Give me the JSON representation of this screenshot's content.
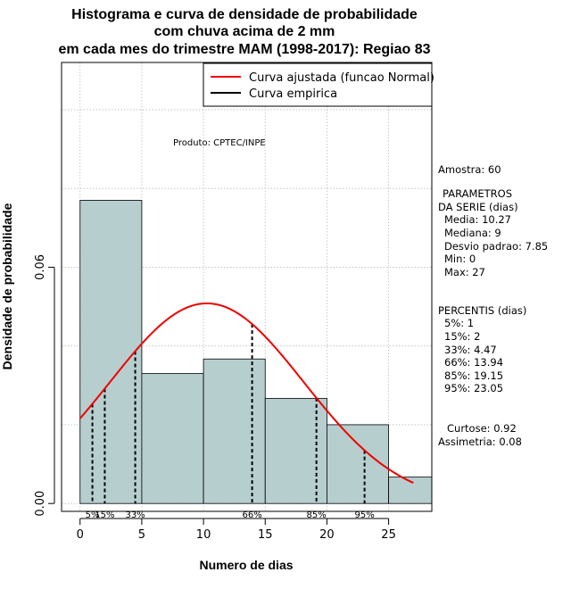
{
  "chart_data": {
    "type": "histogram",
    "title_lines": [
      "Histograma e curva de densidade de probabilidade",
      "com chuva acima de 2 mm",
      "em cada mes do trimestre MAM (1998-2017): Regiao 83"
    ],
    "xlabel": "Numero de dias",
    "ylabel": "Densidade de probabilidade",
    "xlim": [
      -1.5,
      28.5
    ],
    "ylim": [
      -0.002,
      0.112
    ],
    "x_ticks": [
      0,
      5,
      10,
      15,
      20,
      25
    ],
    "y_ticks": [
      0.0,
      0.06
    ],
    "y_tick_labels": [
      "0.00",
      "0.06"
    ],
    "x_grid": [
      0,
      5,
      10,
      15,
      20,
      25
    ],
    "y_grid": [
      0.0,
      0.02,
      0.04,
      0.06,
      0.08,
      0.1
    ],
    "bins": [
      {
        "x0": 0,
        "x1": 5,
        "density": 0.077
      },
      {
        "x0": 5,
        "x1": 10,
        "density": 0.033
      },
      {
        "x0": 10,
        "x1": 15,
        "density": 0.0367
      },
      {
        "x0": 15,
        "x1": 20,
        "density": 0.0267
      },
      {
        "x0": 20,
        "x1": 25,
        "density": 0.02
      },
      {
        "x0": 25,
        "x1": 30,
        "density": 0.0067
      }
    ],
    "normal_fit": {
      "mean": 10.27,
      "sd": 7.85,
      "x_from": 0,
      "x_to": 27
    },
    "percentile_lines": [
      {
        "label": "5%",
        "x": 1
      },
      {
        "label": "15%",
        "x": 2
      },
      {
        "label": "33%",
        "x": 4.47
      },
      {
        "label": "66%",
        "x": 13.94
      },
      {
        "label": "85%",
        "x": 19.15
      },
      {
        "label": "95%",
        "x": 23.05
      }
    ],
    "legend": [
      {
        "label": "Curva ajustada (funcao Normal)",
        "color": "#ee0000"
      },
      {
        "label": "Curva empirica",
        "color": "#000000"
      }
    ],
    "annotation": "Produto: CPTEC/INPE",
    "colors": {
      "bar_fill": "#b7cece",
      "curve": "#ee0000",
      "grid": "#bbbbbb"
    }
  },
  "side_panel": {
    "amostra": "Amostra: 60",
    "param_title_1": "PARAMETROS",
    "param_title_2": "DA SERIE (dias)",
    "media": "Media: 10.27",
    "mediana": "Mediana: 9",
    "desvio": "Desvio padrao: 7.85",
    "min": "Min: 0",
    "max": "Max: 27",
    "perc_title": "PERCENTIS (dias)",
    "p5": "5%: 1",
    "p15": "15%: 2",
    "p33": "33%: 4.47",
    "p66": "66%: 13.94",
    "p85": "85%: 19.15",
    "p95": "95%: 23.05",
    "curtose": "Curtose: 0.92",
    "assimetria": "Assimetria: 0.08"
  }
}
